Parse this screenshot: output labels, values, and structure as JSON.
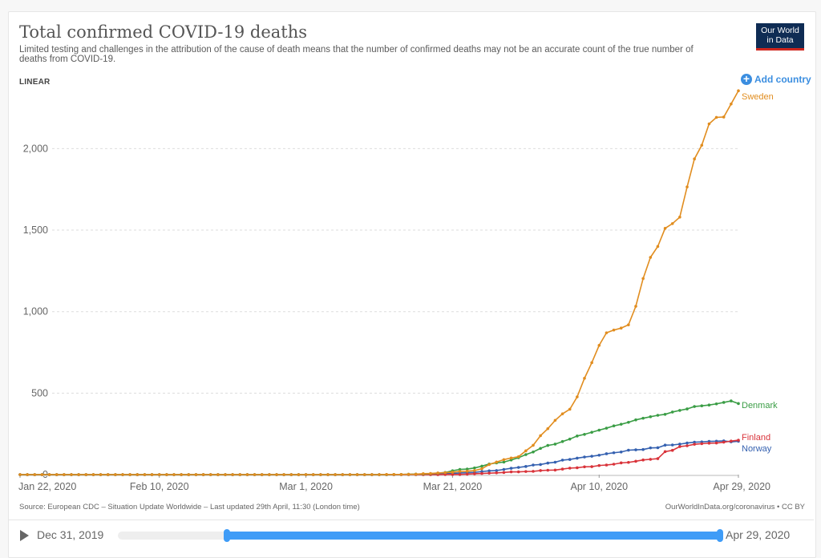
{
  "header": {
    "title": "Total confirmed COVID-19 deaths",
    "subtitle": "Limited testing and challenges in the attribution of the cause of death means that the number of confirmed deaths may not be an accurate count of the true number of deaths from COVID-19.",
    "scale_label": "LINEAR",
    "logo_line1": "Our World",
    "logo_line2": "in Data",
    "add_country_label": "Add country"
  },
  "footer": {
    "source": "Source: European CDC – Situation Update Worldwide – Last updated 29th April, 11:30 (London time)",
    "credit": "OurWorldInData.org/coronavirus • CC BY"
  },
  "timeline": {
    "start_label": "Dec 31, 2019",
    "end_label": "Apr 29, 2020",
    "range_start_fraction": 0.18,
    "range_end_fraction": 1.0,
    "play_icon": "play-icon"
  },
  "colors": {
    "Sweden": "#e18d1f",
    "Denmark": "#3a9d45",
    "Finland": "#d9333a",
    "Norway": "#3561b0",
    "accent": "#3b8ee0"
  },
  "chart_data": {
    "type": "line",
    "title": "Total confirmed COVID-19 deaths",
    "xlabel": "",
    "ylabel": "",
    "x_start": "Jan 22, 2020",
    "x_end": "Apr 29, 2020",
    "x_days": 98,
    "x_ticks": [
      {
        "day": 0,
        "label": "Jan 22, 2020"
      },
      {
        "day": 19,
        "label": "Feb 10, 2020"
      },
      {
        "day": 39,
        "label": "Mar 1, 2020"
      },
      {
        "day": 59,
        "label": "Mar 21, 2020"
      },
      {
        "day": 79,
        "label": "Apr 10, 2020"
      },
      {
        "day": 98,
        "label": "Apr 29, 2020"
      }
    ],
    "y_ticks": [
      {
        "value": 0,
        "label": "0"
      },
      {
        "value": 500,
        "label": "500"
      },
      {
        "value": 1000,
        "label": "1,000"
      },
      {
        "value": 1500,
        "label": "1,500"
      },
      {
        "value": 2000,
        "label": "2,000"
      }
    ],
    "ylim": [
      0,
      2400
    ],
    "grid": true,
    "legend": "inline-right",
    "series": [
      {
        "name": "Sweden",
        "start_day": 50,
        "values": [
          1,
          1,
          1,
          2,
          3,
          6,
          7,
          10,
          12,
          15,
          20,
          21,
          25,
          36,
          62,
          77,
          92,
          102,
          110,
          146,
          180,
          239,
          282,
          333,
          373,
          401,
          477,
          591,
          687,
          793,
          870,
          887,
          899,
          919,
          1033,
          1203,
          1333,
          1400,
          1511,
          1540,
          1580,
          1765,
          1937,
          2021,
          2152,
          2192,
          2194,
          2274,
          2355
        ]
      },
      {
        "name": "Denmark",
        "start_day": 50,
        "values": [
          0,
          1,
          1,
          2,
          3,
          4,
          6,
          9,
          13,
          24,
          32,
          34,
          41,
          52,
          65,
          72,
          77,
          90,
          104,
          123,
          139,
          161,
          179,
          187,
          203,
          218,
          237,
          247,
          260,
          273,
          285,
          299,
          309,
          321,
          336,
          346,
          355,
          364,
          370,
          384,
          394,
          403,
          418,
          422,
          427,
          434,
          443,
          452,
          436
        ]
      },
      {
        "name": "Finland",
        "start_day": 50,
        "values": [
          0,
          0,
          0,
          0,
          0,
          0,
          0,
          0,
          1,
          1,
          1,
          3,
          5,
          7,
          9,
          11,
          13,
          17,
          17,
          19,
          20,
          25,
          27,
          28,
          34,
          40,
          42,
          48,
          49,
          56,
          59,
          64,
          72,
          75,
          82,
          90,
          94,
          98,
          141,
          149,
          172,
          177,
          186,
          190,
          193,
          194,
          199,
          206,
          211
        ]
      },
      {
        "name": "Norway",
        "start_day": 50,
        "values": [
          0,
          0,
          1,
          1,
          3,
          3,
          3,
          6,
          7,
          7,
          10,
          12,
          14,
          19,
          23,
          25,
          32,
          39,
          44,
          50,
          59,
          62,
          71,
          76,
          89,
          93,
          101,
          108,
          113,
          119,
          128,
          134,
          139,
          150,
          152,
          154,
          164,
          165,
          181,
          182,
          187,
          194,
          199,
          201,
          204,
          205,
          207,
          201,
          205
        ]
      }
    ]
  }
}
